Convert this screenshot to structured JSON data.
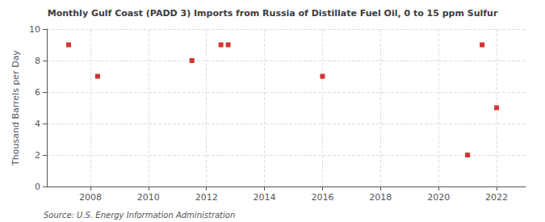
{
  "chart_data": {
    "type": "scatter",
    "title": "Monthly Gulf Coast (PADD 3) Imports from Russia of Distillate Fuel Oil, 0 to 15 ppm Sulfur",
    "ylabel": "Thousand Barrels per Day",
    "annotations": [
      "Source: U.S. Energy Information Administration"
    ],
    "x": [
      2007.25,
      2008.25,
      2011.5,
      2012.5,
      2012.75,
      2016.0,
      2021.0,
      2021.5,
      2022.0
    ],
    "values": [
      9.0,
      7.0,
      8.0,
      9.0,
      9.0,
      7.0,
      2.0,
      9.0,
      5.0
    ],
    "color": "#cc0000",
    "marker": "square",
    "xlim": [
      2006.5,
      2023.0
    ],
    "ylim": [
      0,
      10
    ],
    "xticks": [
      2008,
      2010,
      2012,
      2014,
      2016,
      2018,
      2020,
      2022
    ],
    "yticks": [
      0,
      2,
      4,
      6,
      8,
      10
    ],
    "grid": true
  }
}
